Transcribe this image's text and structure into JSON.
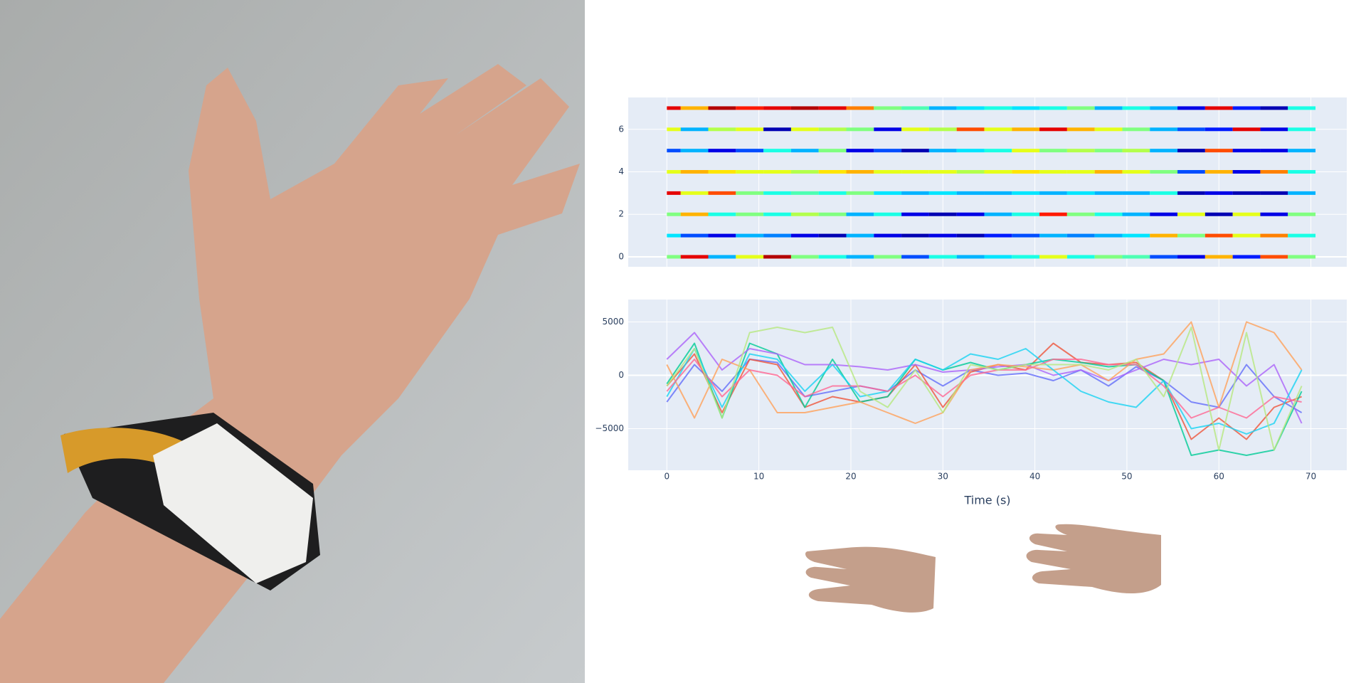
{
  "chart_data": [
    {
      "type": "heatmap",
      "colorscale": "Jet",
      "zlim": [
        0,
        1
      ],
      "x": [
        0,
        3,
        6,
        9,
        12,
        15,
        18,
        21,
        24,
        27,
        30,
        33,
        36,
        39,
        42,
        45,
        48,
        51,
        54,
        57,
        60,
        63,
        66,
        69
      ],
      "y": [
        0,
        1,
        2,
        3,
        4,
        5,
        6,
        7
      ],
      "z": [
        [
          0.5,
          0.9,
          0.3,
          0.6,
          0.95,
          0.5,
          0.4,
          0.3,
          0.5,
          0.2,
          0.4,
          0.3,
          0.35,
          0.4,
          0.6,
          0.4,
          0.5,
          0.45,
          0.2,
          0.1,
          0.7,
          0.15,
          0.8,
          0.5
        ],
        [
          0.35,
          0.2,
          0.1,
          0.3,
          0.25,
          0.1,
          0.05,
          0.3,
          0.1,
          0.05,
          0.1,
          0.05,
          0.15,
          0.2,
          0.3,
          0.25,
          0.3,
          0.35,
          0.7,
          0.5,
          0.8,
          0.6,
          0.75,
          0.4
        ],
        [
          0.5,
          0.7,
          0.4,
          0.5,
          0.4,
          0.55,
          0.5,
          0.3,
          0.4,
          0.1,
          0.05,
          0.1,
          0.3,
          0.4,
          0.85,
          0.5,
          0.4,
          0.3,
          0.1,
          0.6,
          0.05,
          0.6,
          0.1,
          0.5
        ],
        [
          0.9,
          0.6,
          0.8,
          0.5,
          0.4,
          0.45,
          0.4,
          0.5,
          0.35,
          0.3,
          0.35,
          0.3,
          0.3,
          0.35,
          0.3,
          0.35,
          0.3,
          0.3,
          0.4,
          0.05,
          0.1,
          0.05,
          0.05,
          0.3
        ],
        [
          0.6,
          0.7,
          0.65,
          0.6,
          0.6,
          0.55,
          0.65,
          0.7,
          0.6,
          0.6,
          0.6,
          0.55,
          0.6,
          0.65,
          0.6,
          0.6,
          0.7,
          0.6,
          0.5,
          0.2,
          0.7,
          0.1,
          0.75,
          0.4
        ],
        [
          0.2,
          0.3,
          0.1,
          0.2,
          0.4,
          0.3,
          0.5,
          0.1,
          0.2,
          0.05,
          0.3,
          0.35,
          0.4,
          0.6,
          0.5,
          0.55,
          0.5,
          0.55,
          0.3,
          0.05,
          0.8,
          0.1,
          0.1,
          0.3
        ],
        [
          0.6,
          0.3,
          0.55,
          0.6,
          0.05,
          0.6,
          0.55,
          0.5,
          0.1,
          0.6,
          0.55,
          0.8,
          0.6,
          0.7,
          0.9,
          0.7,
          0.6,
          0.5,
          0.3,
          0.2,
          0.15,
          0.9,
          0.1,
          0.4
        ],
        [
          0.9,
          0.7,
          0.95,
          0.85,
          0.9,
          0.95,
          0.9,
          0.75,
          0.5,
          0.45,
          0.3,
          0.35,
          0.4,
          0.35,
          0.4,
          0.5,
          0.3,
          0.4,
          0.3,
          0.1,
          0.9,
          0.15,
          0.05,
          0.4
        ]
      ],
      "xlim": [
        -4.2,
        73.9
      ],
      "xticks": [
        0,
        10,
        20,
        30,
        40,
        50,
        60,
        70
      ],
      "ylim": [
        -0.47,
        7.5
      ],
      "yticks": [
        0,
        2,
        4,
        6
      ],
      "grid": true
    },
    {
      "type": "line",
      "x_label": "Time (s)",
      "x": [
        0,
        3,
        6,
        9,
        12,
        15,
        18,
        21,
        24,
        27,
        30,
        33,
        36,
        39,
        42,
        45,
        48,
        51,
        54,
        57,
        60,
        63,
        66,
        69
      ],
      "series": [
        {
          "color": "#636efa",
          "values": [
            -2500,
            1000,
            -1500,
            1500,
            1200,
            -2000,
            -1500,
            -1000,
            -1500,
            500,
            -1000,
            500,
            0,
            200,
            -500,
            500,
            -1000,
            800,
            -500,
            -2500,
            -3000,
            1000,
            -2000,
            -3500
          ]
        },
        {
          "color": "#EF553B",
          "values": [
            -1000,
            2000,
            -3500,
            1500,
            1000,
            -3000,
            -2000,
            -2500,
            -2000,
            1000,
            -3000,
            300,
            1000,
            500,
            3000,
            1200,
            1000,
            1200,
            -500,
            -6000,
            -4000,
            -6000,
            -3000,
            -2000
          ]
        },
        {
          "color": "#00cc96",
          "values": [
            -800,
            3000,
            -4000,
            3000,
            2000,
            -3000,
            1500,
            -2500,
            -2000,
            1500,
            500,
            1200,
            500,
            1000,
            1500,
            1200,
            800,
            1000,
            -500,
            -7500,
            -7000,
            -7500,
            -7000,
            -1500
          ]
        },
        {
          "color": "#ab63fa",
          "values": [
            1500,
            4000,
            500,
            2500,
            2000,
            1000,
            1000,
            800,
            500,
            1000,
            300,
            500,
            800,
            1000,
            0,
            500,
            -500,
            500,
            1500,
            1000,
            1500,
            -1000,
            1000,
            -4500
          ]
        },
        {
          "color": "#FFA15A",
          "values": [
            1000,
            -4000,
            1500,
            500,
            -3500,
            -3500,
            -3000,
            -2500,
            -3500,
            -4500,
            -3500,
            500,
            1000,
            800,
            500,
            1000,
            -500,
            1500,
            2000,
            5000,
            -3000,
            5000,
            4000,
            500
          ]
        },
        {
          "color": "#19d3f3",
          "values": [
            -2000,
            2500,
            -3000,
            2000,
            1500,
            -1500,
            1000,
            -2000,
            -1500,
            1500,
            500,
            2000,
            1500,
            2500,
            500,
            -1500,
            -2500,
            -3000,
            -500,
            -5000,
            -4500,
            -5500,
            -4500,
            500
          ]
        },
        {
          "color": "#FF6692",
          "values": [
            -1500,
            1500,
            -2000,
            500,
            0,
            -2000,
            -1000,
            -1000,
            -1500,
            0,
            -2000,
            0,
            500,
            500,
            1500,
            1500,
            1000,
            1000,
            -1000,
            -4000,
            -3000,
            -4000,
            -2000,
            -2500
          ]
        },
        {
          "color": "#B6E880",
          "values": [
            -1000,
            2500,
            -4000,
            4000,
            4500,
            4000,
            4500,
            -1500,
            -3000,
            500,
            -3500,
            1000,
            500,
            1000,
            1000,
            1000,
            500,
            1500,
            -2000,
            4500,
            -7000,
            4000,
            -7000,
            -1000
          ]
        }
      ],
      "xlim": [
        -4.2,
        73.9
      ],
      "xticks": [
        0,
        10,
        20,
        30,
        40,
        50,
        60,
        70
      ],
      "ylim": [
        -8900,
        7100
      ],
      "yticks": [
        {
          "value": -5000,
          "label": "−5000"
        },
        0,
        5000
      ],
      "grid": true
    }
  ]
}
